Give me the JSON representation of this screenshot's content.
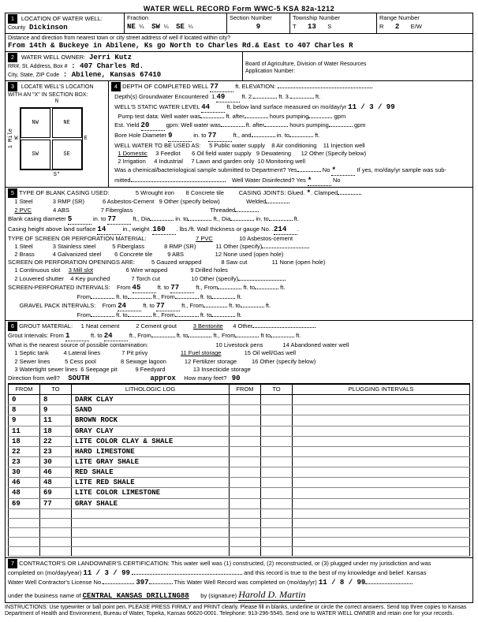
{
  "form_header": "WATER WELL RECORD    Form WWC-5    KSA 82a-1212",
  "sec1": {
    "title": "LOCATION OF WATER WELL:",
    "county_label": "County",
    "county": "Dickinson",
    "fraction_label": "Fraction",
    "fraction_vals": [
      "NE",
      "¼",
      "SW",
      "¼",
      "SE",
      "¼"
    ],
    "section_label": "Section Number",
    "section": "9",
    "township_label": "Township Number",
    "township_t": "T",
    "township": "13",
    "township_s": "S",
    "range_label": "Range Number",
    "range_r": "R",
    "range": "2",
    "range_ew": "E/W",
    "dist_label": "Distance and direction from nearest town or city street address of well if located within city?",
    "dist_val": "From 14th & Buckeye in Abilene, Ks go North to Charles Rd.& East to 407 Charles R"
  },
  "sec2": {
    "title": "WATER WELL OWNER:",
    "owner": "Jerri Kutz",
    "addr_label": "RR#, St. Address, Box #",
    "addr": ": 407 Charles Rd.",
    "city_label": "City, State, ZIP Code",
    "city": ":   Abilene, Kansas  67410",
    "board": "Board of Agriculture, Division of Water Resources",
    "appnum": "Application Number:"
  },
  "sec3": {
    "title": "LOCATE WELL'S LOCATION WITH AN \"X\" IN SECTION BOX:",
    "nw": "NW",
    "ne": "NE",
    "sw": "SW",
    "se": "SE",
    "w": "W",
    "e": "E",
    "mile": "1 Mile",
    "n": "N",
    "s": "S*"
  },
  "sec4": {
    "title": "DEPTH OF COMPLETED WELL",
    "depth": "77",
    "elev_lbl": "ft. ELEVATION:",
    "gw_enc": "Depth(s) Groundwater Encountered",
    "gw1": "1",
    "gw1v": "49",
    "gw2": "ft.   2",
    "gw3": "ft.   3.",
    "gw3v": "ft.",
    "swl_lbl": "WELL'S STATIC WATER LEVEL",
    "swl": "44",
    "swl_tail": "ft. below land surface measured on mo/day/yr",
    "swl_date": "11 / 3 / 99",
    "pump_lbl": "Pump test data:   Well water was",
    "after_lbl": "ft. after",
    "hrs_lbl": "hours pumping",
    "gpm_lbl": "gpm",
    "est_lbl": "Est. Yield",
    "est": "20",
    "est_unit": "gpm:   Well water was",
    "after2": "ft. after",
    "hrs2": "hours pumping",
    "gpm2": "gpm",
    "bore_lbl": "Bore Hole Diameter",
    "bore": "9",
    "bore_in": "in. to",
    "bore_to": "77",
    "bore_ft": "ft., and",
    "bore_in2": "in. to",
    "bore_ft2": "ft.",
    "use_lbl": "WELL WATER TO BE USED AS:",
    "uses": [
      "1 Domestic",
      "2 Irrigation",
      "3 Feedlot",
      "4 Industrial",
      "5 Public water supply",
      "6 Oil field water supply",
      "7 Lawn and garden only",
      "8 Air conditioning",
      "9 Dewatering",
      "10 Monitoring well",
      "11 Injection well",
      "12 Other (Specify below)"
    ],
    "bact_lbl": "Was a chemical/bacteriological sample submitted to Department? Yes",
    "bact_no": "No",
    "bact_star": "*",
    "bact_tail": "If yes, mo/day/yr sample was sub-",
    "mitted": "mitted",
    "disinf_lbl": "Well Water Disinfected?  Yes",
    "disinf_star": "*",
    "disinf_no": "No"
  },
  "sec5": {
    "title": "TYPE OF BLANK CASING USED:",
    "mats": [
      "1 Steel",
      "2 PVC",
      "3 RMP (SR)",
      "4 ABS",
      "5 Wrought iron",
      "6 Asbestos-Cement",
      "7 Fiberglass",
      "8 Concrete tile",
      "9 Other (specify below)"
    ],
    "joints_lbl": "CASING JOINTS:",
    "joints": [
      "Glued",
      "*",
      "Clamped",
      "Welded",
      "Threaded"
    ],
    "bc_dia_lbl": "Blank casing diameter",
    "bc_dia": "5",
    "bc_in": "in. to",
    "bc_to": "77",
    "bc_ft": "ft., Dia",
    "bc_in2": "in. to",
    "bc_ft2": "ft., Dia",
    "bc_in3": "in. to",
    "bc_ft3": "ft.",
    "ch_lbl": "Casing height above land surface",
    "ch": "14",
    "ch_in": "in., weight",
    "ch_wt": "160",
    "ch_wt_u": "lbs./ft. Wall thickness or gauge No.",
    "ch_g": "214",
    "screen_lbl": "TYPE OF SCREEN OR PERFORATION MATERIAL:",
    "screens": [
      "1 Steel",
      "2 Brass",
      "3 Stainless steel",
      "4 Galvanized steel",
      "5 Fiberglass",
      "6 Concrete tile",
      "7 PVC",
      "8 RMP (SR)",
      "9 ABS",
      "10 Asbestos-cement",
      "11 Other (specify)",
      "12 None used (open hole)"
    ],
    "open_lbl": "SCREEN OR PERFORATION OPENINGS ARE:",
    "openings": [
      "1 Continuous slot",
      "2 Louvered shutter",
      "3 Mill slot",
      "4 Key punched",
      "5 Gauzed wrapped",
      "6 Wire wrapped",
      "7 Torch cut",
      "8 Saw cut",
      "9 Drilled holes",
      "10 Other (specify)",
      "11 None (open hole)"
    ],
    "spi_lbl": "SCREEN-PERFORATED INTERVALS:",
    "spi_from": "From",
    "spi1f": "45",
    "spi_to": "ft. to",
    "spi1t": "77",
    "spi_tail": "ft., From",
    "spi_tail2": "ft. to",
    "spi_tail3": "ft.",
    "gpi_lbl": "GRAVEL PACK INTERVALS:",
    "gpi1f": "24",
    "gpi1t": "77"
  },
  "sec6": {
    "title": "GROUT MATERIAL:",
    "mats": [
      "1 Neat cement",
      "2 Cement grout",
      "3 Bentonite",
      "4 Other"
    ],
    "gi_lbl": "Grout Intervals:   From",
    "gi1f": "1",
    "gi_to": "ft. to",
    "gi1t": "24",
    "gi_tail": "ft., From",
    "gi_tail2": "ft. to",
    "gi_tail3": "ft., From",
    "gi_tail4": "ft to",
    "gi_tail5": "ft.",
    "contam_lbl": "What is the nearest source of possible contamination:",
    "contams": [
      "1 Septic tank",
      "2 Sewer lines",
      "3 Watertight sewer lines",
      "4 Lateral lines",
      "5 Cess pool",
      "6 Seepage pit",
      "7 Pit privy",
      "8 Sewage lagoon",
      "9 Feedyard",
      "10 Livestock pens",
      "11 Fuel storage",
      "12 Fertilizer storage",
      "13 Insecticide storage",
      "14 Abandoned water well",
      "15 Oil well/Gas well",
      "16 Other (specify below)"
    ],
    "dir_lbl": "Direction from well?",
    "dir": "SOUTH",
    "approx": "approx",
    "feet_lbl": "How many feet?",
    "feet": "90",
    "th_from": "FROM",
    "th_to": "TO",
    "th_log": "LITHOLOGIC LOG",
    "th_plug": "PLUGGING INTERVALS",
    "rows": [
      {
        "f": "0",
        "t": "8",
        "d": "DARK CLAY"
      },
      {
        "f": "8",
        "t": "9",
        "d": "SAND"
      },
      {
        "f": "9",
        "t": "11",
        "d": "BROWN ROCK"
      },
      {
        "f": "11",
        "t": "18",
        "d": "GRAY CLAY"
      },
      {
        "f": "18",
        "t": "22",
        "d": "LITE COLOR CLAY & SHALE"
      },
      {
        "f": "22",
        "t": "23",
        "d": "HARD LIMESTONE"
      },
      {
        "f": "23",
        "t": "30",
        "d": "LITE GRAY SHALE"
      },
      {
        "f": "30",
        "t": "46",
        "d": "RED SHALE"
      },
      {
        "f": "46",
        "t": "48",
        "d": "LITE RED SHALE"
      },
      {
        "f": "48",
        "t": "69",
        "d": "LITE COLOR LIMESTONE"
      },
      {
        "f": "69",
        "t": "77",
        "d": "GRAY SHALE"
      }
    ]
  },
  "sec7": {
    "title": "CONTRACTOR'S OR LANDOWNER'S CERTIFICATION: This water well was (1) constructed, (2) reconstructed, or (3) plugged under my jurisdiction and was",
    "comp_lbl": "completed on (mo/day/year)",
    "comp": "11 / 3 / 99",
    "tail": "and this record is true to the best of my knowledge and belief. Kansas",
    "lic_lbl": "Water Well Contractor's License No.",
    "lic": "397",
    "rec_lbl": "This Water Well Record was completed on (mo/day/yr)",
    "rec": "11 / 8 / 99",
    "bus_lbl": "under the business name of",
    "bus": "CENTRAL KANSAS DRILLING88",
    "sig_lbl": "by (signature)",
    "sig": "Harold D. Martin"
  },
  "instr": "INSTRUCTIONS: Use typewriter or ball point pen. PLEASE PRESS FIRMLY and PRINT clearly. Please fill in blanks, underline or circle the correct answers. Send top three copies to Kansas Department of Health and Environment, Bureau of Water, Topeka, Kansas 66620-0001. Telephone: 913-296-5545. Send one to WATER WELL OWNER and retain one for your records."
}
